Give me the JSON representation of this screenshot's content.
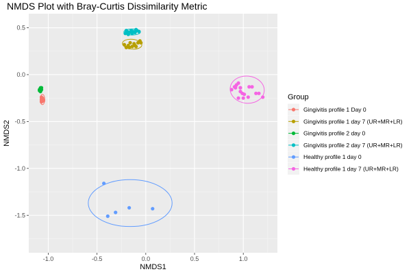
{
  "chart_data": {
    "type": "scatter",
    "title": "NMDS Plot with Bray-Curtis Dissimilarity Metric",
    "xlabel": "NMDS1",
    "ylabel": "NMDS2",
    "xlim": [
      -1.2,
      1.35
    ],
    "ylim": [
      -1.9,
      0.65
    ],
    "x_ticks": [
      -1.0,
      -0.5,
      0.0,
      0.5,
      1.0
    ],
    "x_tick_labels": [
      "-1.0",
      "-0.5",
      "0.0",
      "0.5",
      "1.0"
    ],
    "y_ticks": [
      0.5,
      0.0,
      -0.5,
      -1.0,
      -1.5
    ],
    "y_tick_labels": [
      "0.5",
      "0.0",
      "-0.5",
      "-1.0",
      "-1.5"
    ],
    "grid": true,
    "panel_background": "#ebebeb",
    "legend": {
      "title": "Group",
      "position": "right"
    },
    "series": [
      {
        "name": "Gingivitis profile 1 Day 0",
        "color": "#f8766d",
        "points": [
          [
            -1.07,
            -0.24
          ],
          [
            -1.06,
            -0.26
          ],
          [
            -1.05,
            -0.27
          ],
          [
            -1.07,
            -0.29
          ],
          [
            -1.06,
            -0.25
          ],
          [
            -1.05,
            -0.28
          ],
          [
            -1.07,
            -0.27
          ]
        ],
        "ellipse": {
          "cx": -1.06,
          "cy": -0.265,
          "rx": 0.024,
          "ry": 0.055,
          "angle": 0
        }
      },
      {
        "name": "Gingivitis profile 1 day 7 (UR+MR+LR)",
        "color": "#b79f00",
        "points": [
          [
            -0.22,
            0.32
          ],
          [
            -0.2,
            0.29
          ],
          [
            -0.18,
            0.31
          ],
          [
            -0.16,
            0.34
          ],
          [
            -0.14,
            0.3
          ],
          [
            -0.12,
            0.33
          ],
          [
            -0.1,
            0.3
          ],
          [
            -0.08,
            0.34
          ],
          [
            -0.06,
            0.36
          ],
          [
            -0.17,
            0.29
          ],
          [
            -0.11,
            0.31
          ],
          [
            -0.05,
            0.34
          ]
        ],
        "ellipse": {
          "cx": -0.14,
          "cy": 0.325,
          "rx": 0.1,
          "ry": 0.052,
          "angle": -0.2
        }
      },
      {
        "name": "Gingivitis profile 2 day 0",
        "color": "#00ba38",
        "points": [
          [
            -1.09,
            -0.17
          ],
          [
            -1.08,
            -0.15
          ],
          [
            -1.07,
            -0.16
          ],
          [
            -1.08,
            -0.18
          ],
          [
            -1.07,
            -0.14
          ],
          [
            -1.09,
            -0.16
          ]
        ],
        "ellipse": {
          "cx": -1.08,
          "cy": -0.16,
          "rx": 0.018,
          "ry": 0.035,
          "angle": 0
        }
      },
      {
        "name": "Gingivitis profile 2 day 7 (UR+MR+LR)",
        "color": "#00bfc4",
        "points": [
          [
            -0.21,
            0.44
          ],
          [
            -0.19,
            0.46
          ],
          [
            -0.17,
            0.45
          ],
          [
            -0.15,
            0.47
          ],
          [
            -0.13,
            0.46
          ],
          [
            -0.11,
            0.45
          ],
          [
            -0.09,
            0.47
          ],
          [
            -0.07,
            0.46
          ],
          [
            -0.18,
            0.43
          ],
          [
            -0.14,
            0.44
          ],
          [
            -0.1,
            0.48
          ],
          [
            -0.2,
            0.47
          ]
        ],
        "ellipse": {
          "cx": -0.14,
          "cy": 0.455,
          "rx": 0.085,
          "ry": 0.032,
          "angle": 0
        }
      },
      {
        "name": "Healthy profile 1 day 0",
        "color": "#619cff",
        "points": [
          [
            -0.43,
            -1.16
          ],
          [
            -0.39,
            -1.51
          ],
          [
            -0.31,
            -1.47
          ],
          [
            -0.17,
            -1.42
          ],
          [
            0.07,
            -1.43
          ]
        ],
        "ellipse": {
          "cx": -0.16,
          "cy": -1.37,
          "rx": 0.43,
          "ry": 0.25,
          "angle": 0
        }
      },
      {
        "name": "Healthy profile 1 day 7 (UR+MR+LR)",
        "color": "#f564e3",
        "points": [
          [
            0.88,
            -0.16
          ],
          [
            0.91,
            -0.13
          ],
          [
            0.93,
            -0.11
          ],
          [
            0.95,
            -0.09
          ],
          [
            0.97,
            -0.14
          ],
          [
            0.99,
            -0.2
          ],
          [
            1.01,
            -0.21
          ],
          [
            1.06,
            -0.13
          ],
          [
            1.09,
            -0.13
          ],
          [
            1.13,
            -0.2
          ],
          [
            1.16,
            -0.2
          ],
          [
            1.2,
            -0.24
          ],
          [
            0.95,
            -0.25
          ],
          [
            1.0,
            -0.25
          ],
          [
            1.05,
            -0.24
          ],
          [
            0.92,
            -0.14
          ],
          [
            0.97,
            -0.18
          ]
        ],
        "ellipse": {
          "cx": 1.04,
          "cy": -0.16,
          "rx": 0.175,
          "ry": 0.145,
          "angle": -0.2
        }
      }
    ]
  }
}
